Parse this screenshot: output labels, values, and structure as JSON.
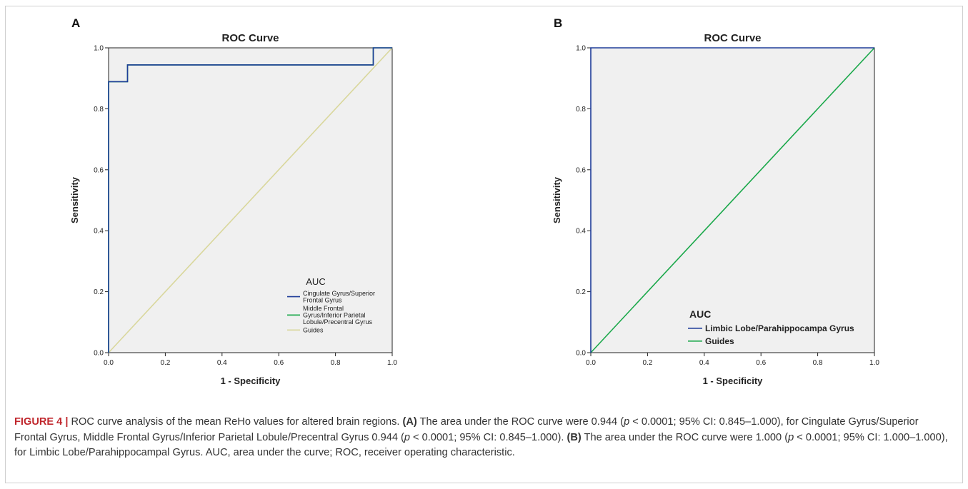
{
  "chart_data": [
    {
      "type": "line",
      "panel_letter": "A",
      "title": "ROC Curve",
      "xlabel": "1 - Specificity",
      "ylabel": "Sensitivity",
      "xlim": [
        0,
        1
      ],
      "ylim": [
        0,
        1
      ],
      "x_ticks": [
        "0.0",
        "0.2",
        "0.4",
        "0.6",
        "0.8",
        "1.0"
      ],
      "y_ticks": [
        "0.0",
        "0.2",
        "0.4",
        "0.6",
        "0.8",
        "1.0"
      ],
      "grid": false,
      "legend_title": "AUC",
      "legend_position": "bottom-right",
      "series": [
        {
          "name": "Cingulate Gyrus/Superior Frontal Gyrus",
          "name_lines": [
            "Cingulate Gyrus/Superior",
            "Frontal Gyrus"
          ],
          "color": "#1f3d99",
          "x": [
            0,
            0,
            0.0667,
            0.0667,
            0.9333,
            0.9333,
            1.0
          ],
          "y": [
            0,
            0.889,
            0.889,
            0.944,
            0.944,
            1.0,
            1.0
          ]
        },
        {
          "name": "Middle Frontal Gyrus/Inferior Parietal Lobule/Precentral Gyrus",
          "name_lines": [
            "Middle Frontal",
            "Gyrus/Inferior Parietal",
            "Lobule/Precentral Gyrus"
          ],
          "color": "#1aa84a",
          "x": [
            0,
            0,
            0.0667,
            0.0667,
            0.9333,
            0.9333,
            1.0
          ],
          "y": [
            0,
            0.889,
            0.889,
            0.944,
            0.944,
            1.0,
            1.0
          ]
        },
        {
          "name": "Guides",
          "name_lines": [
            "Guides"
          ],
          "color": "#d9d79c",
          "x": [
            0,
            1
          ],
          "y": [
            0,
            1
          ]
        }
      ]
    },
    {
      "type": "line",
      "panel_letter": "B",
      "title": "ROC Curve",
      "xlabel": "1 - Specificity",
      "ylabel": "Sensitivity",
      "xlim": [
        0,
        1
      ],
      "ylim": [
        0,
        1
      ],
      "x_ticks": [
        "0.0",
        "0.2",
        "0.4",
        "0.6",
        "0.8",
        "1.0"
      ],
      "y_ticks": [
        "0.0",
        "0.2",
        "0.4",
        "0.6",
        "0.8",
        "1.0"
      ],
      "grid": false,
      "legend_title": "AUC",
      "legend_position": "bottom-right",
      "series": [
        {
          "name": "Limbic Lobe/Parahippocampa Gyrus",
          "name_lines": [
            "Limbic Lobe/Parahippocampa Gyrus"
          ],
          "color": "#1f3d99",
          "x": [
            0,
            0,
            1.0
          ],
          "y": [
            0,
            1.0,
            1.0
          ]
        },
        {
          "name": "Guides",
          "name_lines": [
            "Guides"
          ],
          "color": "#1aa84a",
          "x": [
            0,
            1
          ],
          "y": [
            0,
            1
          ]
        }
      ]
    }
  ],
  "caption": {
    "figure_label": "FIGURE 4 |",
    "intro": " ROC curve analysis of the mean ReHo values for altered brain regions. ",
    "a_label": "(A)",
    "a_text_1": " The area under the ROC curve were 0.944 (",
    "p_symbol": "p",
    "a_text_2": " < 0.0001; 95% CI: 0.845–1.000), for Cingulate Gyrus/Superior Frontal Gyrus, Middle Frontal Gyrus/Inferior Parietal Lobule/Precentral Gyrus 0.944 (",
    "a_text_3": " < 0.0001; 95% CI: 0.845–1.000). ",
    "b_label": "(B)",
    "b_text_1": " The area under the ROC curve were 1.000 (",
    "b_text_2": " < 0.0001; 95% CI: 1.000–1.000), for Limbic Lobe/Parahippocampal Gyrus. AUC, area under the curve; ROC, receiver operating characteristic."
  }
}
